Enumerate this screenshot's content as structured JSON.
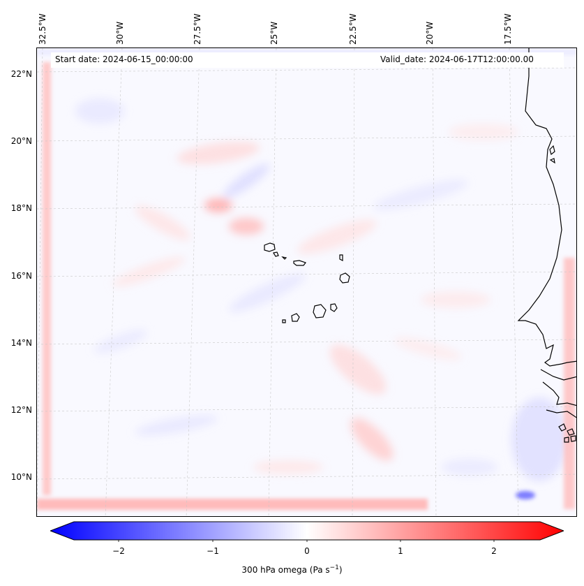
{
  "map": {
    "start_date": "Start date: 2024-06-15_00:00:00",
    "valid_date": "Valid_date: 2024-06-17T12:00:00.00",
    "lon_labels": [
      "32.5°W",
      "30°W",
      "27.5°W",
      "25°W",
      "22.5°W",
      "20°W",
      "17.5°W"
    ],
    "lat_labels": [
      "22°N",
      "20°N",
      "18°N",
      "16°N",
      "14°N",
      "12°N",
      "10°N"
    ],
    "variable": "300 hPa omega",
    "features": [
      "Cape Verde islands",
      "West African coastline (Senegal, Gambia, Guinea-Bissau)"
    ]
  },
  "colorbar": {
    "ticks": [
      "−2",
      "−1",
      "0",
      "1",
      "2"
    ],
    "label_prefix": "300 hPa omega (Pa s",
    "label_exp": "−1",
    "label_suffix": ")",
    "colors": {
      "low": "#0000ff",
      "mid": "#ffffff",
      "high": "#ff0000"
    },
    "range": [
      -2.6,
      2.6
    ]
  }
}
